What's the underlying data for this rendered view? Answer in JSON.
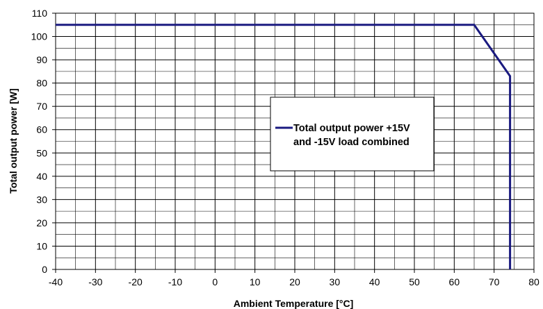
{
  "chart_data": {
    "type": "line",
    "title": "",
    "xlabel": "Ambient Temperature [°C]",
    "ylabel": "Total output power [W]",
    "xlim": [
      -40,
      80
    ],
    "ylim": [
      0,
      110
    ],
    "x_ticks": [
      -40,
      -30,
      -20,
      -10,
      0,
      10,
      20,
      30,
      40,
      50,
      60,
      70,
      80
    ],
    "y_ticks": [
      0,
      10,
      20,
      30,
      40,
      50,
      60,
      70,
      80,
      90,
      100,
      110
    ],
    "grid": true,
    "legend_position": "center-right",
    "series": [
      {
        "name": "Total output power +15V and -15V load combined",
        "legend_lines": [
          "Total output power +15V",
          "and -15V load combined"
        ],
        "color": "#1a1a80",
        "x": [
          -40,
          65,
          74,
          74
        ],
        "y": [
          105,
          105,
          83,
          0
        ]
      }
    ]
  }
}
